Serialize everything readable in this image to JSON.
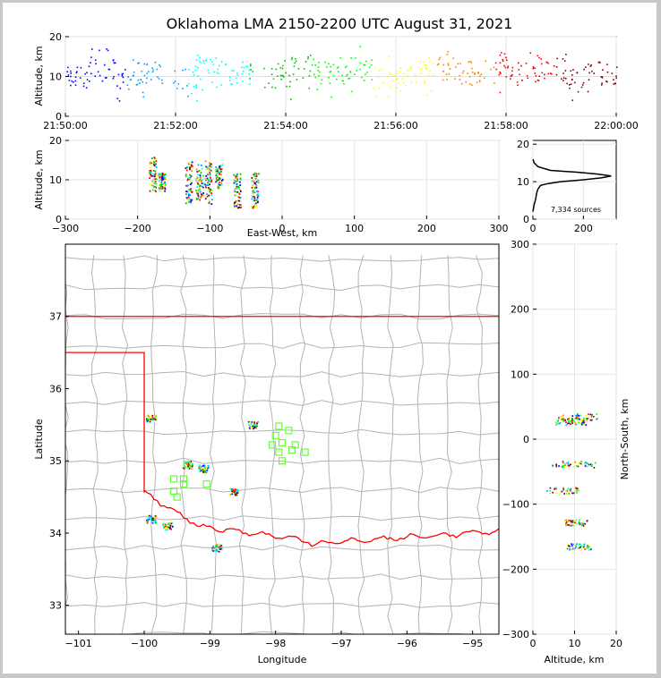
{
  "title": "Oklahoma LMA 2150-2200 UTC August 31, 2021",
  "colors": {
    "sequence": [
      "#0000ff",
      "#00a0ff",
      "#00ffff",
      "#00c000",
      "#00ff00",
      "#ffff00",
      "#ff8000",
      "#ff0000",
      "#800000"
    ],
    "state_border": "#ff0000",
    "county_lines": "#b4b4b4",
    "stations": "#66ff33",
    "profile_line": "#000000"
  },
  "chart_data": [
    {
      "id": "time_height",
      "type": "scatter",
      "xlabel": "",
      "ylabel": "Altitude, km",
      "x_ticks": [
        "21:50:00",
        "21:52:00",
        "21:54:00",
        "21:56:00",
        "21:58:00",
        "22:00:00"
      ],
      "xlim": [
        "21:50:00",
        "22:00:00"
      ],
      "y_ticks": [
        0,
        10,
        20
      ],
      "ylim": [
        0,
        20
      ],
      "grid": true,
      "points_summary": "sources continuous across 21:50-22:00 at 5-15 km altitude, main band near 10-13 km",
      "points": [
        [
          "21:50:10",
          10
        ],
        [
          "21:50:40",
          12
        ],
        [
          "21:51:10",
          9
        ],
        [
          "21:51:30",
          11
        ],
        [
          "21:52:10",
          10
        ],
        [
          "21:52:40",
          12
        ],
        [
          "21:53:10",
          11
        ],
        [
          "21:53:50",
          10
        ],
        [
          "21:54:20",
          12
        ],
        [
          "21:54:50",
          11
        ],
        [
          "21:55:20",
          12
        ],
        [
          "21:55:50",
          10
        ],
        [
          "21:56:20",
          11
        ],
        [
          "21:56:50",
          12
        ],
        [
          "21:57:20",
          11
        ],
        [
          "21:57:50",
          12
        ],
        [
          "21:58:20",
          11
        ],
        [
          "21:58:50",
          12
        ],
        [
          "21:59:20",
          10
        ],
        [
          "21:59:50",
          11
        ]
      ]
    },
    {
      "id": "ew_height",
      "type": "scatter",
      "xlabel": "East-West, km",
      "ylabel": "Altitude, km",
      "x_ticks": [
        -300,
        -200,
        -100,
        0,
        100,
        200,
        300
      ],
      "xlim": [
        -300,
        300
      ],
      "y_ticks": [
        0,
        10,
        20
      ],
      "ylim": [
        0,
        20
      ],
      "grid": true,
      "clusters": [
        {
          "x": -180,
          "y_min": 7,
          "y_max": 16
        },
        {
          "x": -167,
          "y_min": 7,
          "y_max": 12
        },
        {
          "x": -130,
          "y_min": 4,
          "y_max": 15
        },
        {
          "x": -115,
          "y_min": 5,
          "y_max": 14
        },
        {
          "x": -103,
          "y_min": 4,
          "y_max": 15
        },
        {
          "x": -88,
          "y_min": 8,
          "y_max": 14
        },
        {
          "x": -63,
          "y_min": 3,
          "y_max": 12
        },
        {
          "x": -38,
          "y_min": 3,
          "y_max": 12
        }
      ]
    },
    {
      "id": "height_histogram",
      "type": "line",
      "xlabel": "",
      "ylabel": "",
      "x_ticks": [
        0,
        200
      ],
      "xlim": [
        0,
        330
      ],
      "y_ticks": [
        0,
        10,
        20
      ],
      "ylim": [
        0,
        21
      ],
      "annotation": "7,334 sources",
      "profile": [
        [
          0,
          2
        ],
        [
          5,
          4
        ],
        [
          10,
          5
        ],
        [
          15,
          7
        ],
        [
          20,
          8
        ],
        [
          30,
          9
        ],
        [
          60,
          9.5
        ],
        [
          110,
          10
        ],
        [
          200,
          10.5
        ],
        [
          270,
          11
        ],
        [
          310,
          11.5
        ],
        [
          260,
          12
        ],
        [
          180,
          12.5
        ],
        [
          70,
          13
        ],
        [
          20,
          14
        ],
        [
          5,
          15
        ],
        [
          0,
          16
        ]
      ]
    },
    {
      "id": "plan_view",
      "type": "scatter",
      "xlabel": "Longitude",
      "ylabel": "Latitude",
      "x_ticks": [
        -101,
        -100,
        -99,
        -98,
        -97,
        -96,
        -95
      ],
      "xlim": [
        -101.2,
        -94.6
      ],
      "y_ticks": [
        33,
        34,
        35,
        36,
        37
      ],
      "ylim": [
        32.6,
        38.0
      ],
      "clusters": [
        {
          "lon": -99.9,
          "lat": 35.6
        },
        {
          "lon": -99.35,
          "lat": 34.95
        },
        {
          "lon": -99.1,
          "lat": 34.9
        },
        {
          "lon": -98.65,
          "lat": 34.58
        },
        {
          "lon": -98.35,
          "lat": 35.5
        },
        {
          "lon": -99.65,
          "lat": 34.1
        },
        {
          "lon": -99.9,
          "lat": 34.2
        },
        {
          "lon": -98.9,
          "lat": 33.8
        }
      ],
      "stations": [
        [
          -97.95,
          35.48
        ],
        [
          -98.0,
          35.35
        ],
        [
          -98.05,
          35.22
        ],
        [
          -97.8,
          35.42
        ],
        [
          -97.9,
          35.25
        ],
        [
          -97.95,
          35.12
        ],
        [
          -97.7,
          35.22
        ],
        [
          -97.75,
          35.15
        ],
        [
          -97.55,
          35.12
        ],
        [
          -97.9,
          35.0
        ],
        [
          -99.55,
          34.75
        ],
        [
          -99.4,
          34.75
        ],
        [
          -99.35,
          34.95
        ],
        [
          -99.4,
          34.68
        ],
        [
          -99.55,
          34.58
        ],
        [
          -99.5,
          34.5
        ],
        [
          -99.05,
          34.68
        ]
      ]
    },
    {
      "id": "height_ns",
      "type": "scatter",
      "xlabel": "Altitude, km",
      "ylabel": "North-South, km",
      "x_ticks": [
        0,
        10,
        20
      ],
      "xlim": [
        0,
        20
      ],
      "y_ticks": [
        -300,
        -200,
        -100,
        0,
        100,
        200,
        300
      ],
      "ylim": [
        -300,
        300
      ],
      "clusters": [
        {
          "y": 35,
          "x_min": 6,
          "x_max": 16
        },
        {
          "y": 28,
          "x_min": 5,
          "x_max": 13
        },
        {
          "y": -38,
          "x_min": 4,
          "x_max": 15
        },
        {
          "y": -78,
          "x_min": 3,
          "x_max": 11
        },
        {
          "y": -128,
          "x_min": 7,
          "x_max": 13
        },
        {
          "y": -165,
          "x_min": 8,
          "x_max": 14
        }
      ]
    }
  ]
}
